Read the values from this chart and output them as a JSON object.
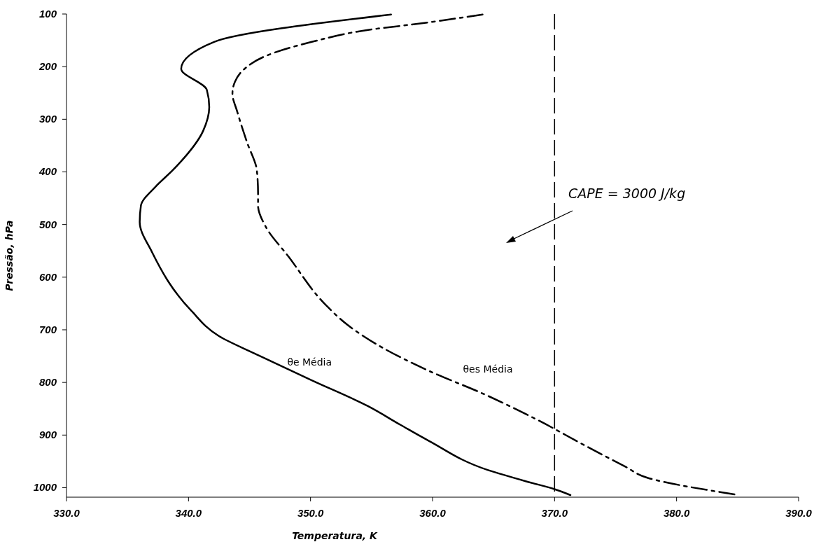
{
  "chart_data": {
    "type": "line",
    "xlabel": "Temperatura, K",
    "ylabel": "Pressão, hPa",
    "xlim": [
      330,
      390
    ],
    "xticks": [
      {
        "value": 330,
        "label": "330.0"
      },
      {
        "value": 340,
        "label": "340.0"
      },
      {
        "value": 350,
        "label": "350.0"
      },
      {
        "value": 360,
        "label": "360.0"
      },
      {
        "value": 370,
        "label": "370.0"
      },
      {
        "value": 380,
        "label": "380.0"
      },
      {
        "value": 390,
        "label": "390.0"
      }
    ],
    "ylim": [
      1018,
      100
    ],
    "yticks": [
      100,
      200,
      300,
      400,
      500,
      600,
      700,
      800,
      900,
      1000
    ],
    "grid": false,
    "series": [
      {
        "name": "θe Média",
        "color": "#000000",
        "line_style": "solid",
        "x": [
          356.6,
          342.1,
          339.4,
          341.5,
          341.7,
          341.2,
          338.7,
          337.3,
          336.1,
          336.0,
          337.0,
          340.2,
          342.5,
          345.6,
          350.1,
          354.7,
          357.4,
          359.7,
          364.6,
          368.0,
          369.9,
          371.3
        ],
        "values": [
          101,
          153,
          204,
          244,
          277,
          322,
          397,
          428,
          464,
          495,
          552,
          663,
          712,
          747,
          796,
          845,
          881,
          911,
          967,
          990,
          1002,
          1014
        ]
      },
      {
        "name": "θes Média",
        "color": "#000000",
        "line_style": "dashdot",
        "x": [
          364.1,
          358.3,
          355.1,
          350.1,
          346.3,
          344.6,
          343.8,
          343.6,
          344.0,
          344.8,
          345.6,
          345.7,
          345.7,
          346.3,
          348.2,
          351.3,
          353.0,
          355.9,
          359.7,
          364.3,
          368.5,
          372.5,
          375.8,
          377.6,
          385.1
        ],
        "values": [
          101,
          120,
          129,
          153,
          180,
          204,
          229,
          251,
          286,
          344,
          397,
          441,
          464,
          503,
          561,
          654,
          690,
          734,
          778,
          823,
          870,
          920,
          960,
          981,
          1014
        ]
      }
    ],
    "ref_lines": [
      {
        "axis": "x",
        "value": 370,
        "line_style": "dashed",
        "color": "#000000"
      }
    ],
    "annotations": [
      "CAPE = 3000 J/kg"
    ]
  }
}
